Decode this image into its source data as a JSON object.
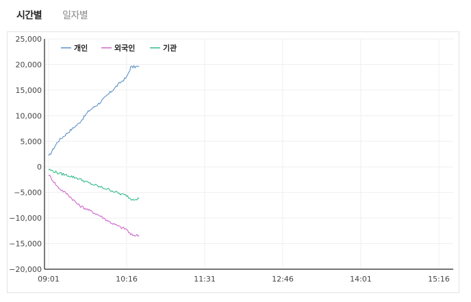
{
  "tabs": [
    {
      "label": "시간별",
      "active": true
    },
    {
      "label": "일자별",
      "active": false
    }
  ],
  "chart_data": {
    "type": "line",
    "title": "",
    "xlabel": "",
    "ylabel": "",
    "ylim": [
      -20000,
      25000
    ],
    "yticks": [
      "25,000",
      "20,000",
      "15,000",
      "10,000",
      "5,000",
      "0",
      "-5,000",
      "-10,000",
      "-15,000",
      "-20,000"
    ],
    "xticks": [
      "09:01",
      "10:16",
      "11:31",
      "12:46",
      "14:01",
      "15:16"
    ],
    "grid": true,
    "legend_position": "top-left inside",
    "x": [
      "09:01",
      "09:10",
      "09:20",
      "09:30",
      "09:40",
      "09:50",
      "10:00",
      "10:10",
      "10:16",
      "10:20",
      "10:28"
    ],
    "series": [
      {
        "name": "개인",
        "color": "#5b8fc7",
        "values": [
          2000,
          5000,
          6800,
          8500,
          11000,
          12500,
          14500,
          16500,
          17500,
          19500,
          19600
        ]
      },
      {
        "name": "외국인",
        "color": "#cc66cc",
        "values": [
          -1500,
          -4000,
          -5500,
          -7500,
          -8500,
          -9500,
          -10800,
          -11800,
          -12200,
          -13300,
          -13400
        ]
      },
      {
        "name": "기관",
        "color": "#33bb88",
        "values": [
          -500,
          -1200,
          -1700,
          -2300,
          -3200,
          -3900,
          -4500,
          -5300,
          -5600,
          -6300,
          -6200
        ]
      }
    ]
  }
}
